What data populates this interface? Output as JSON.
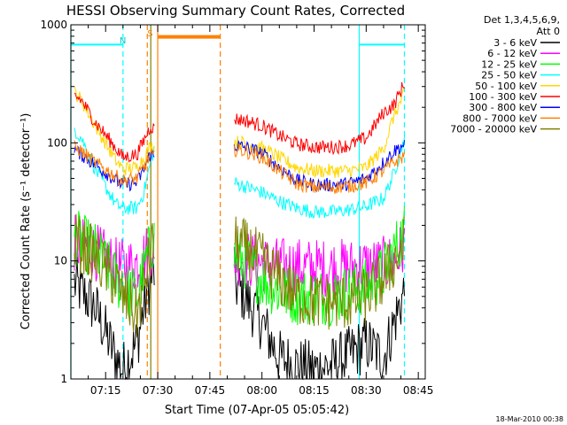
{
  "chart_data": {
    "type": "line",
    "title": "HESSI Observing Summary Count Rates, Corrected",
    "xlabel": "Start Time (07-Apr-05 05:05:42)",
    "ylabel": "Corrected Count Rate (s⁻¹ detector⁻¹)",
    "yscale": "log",
    "ylim": [
      1,
      1000
    ],
    "xlim": [
      "07:05",
      "08:47"
    ],
    "x_ticks": [
      "07:15",
      "07:30",
      "07:45",
      "08:00",
      "08:15",
      "08:30",
      "08:45"
    ],
    "y_ticks": [
      "1",
      "10",
      "100",
      "1000"
    ],
    "legend_position": "top-right",
    "legend_header": [
      "Det 1,3,4,5,6,9,",
      "Att 0"
    ],
    "footer": "18-Mar-2010 00:38",
    "series": [
      {
        "name": "3 - 6 keV",
        "color": "#000000",
        "x": [
          "07:06",
          "07:12",
          "07:18",
          "07:20",
          "07:24",
          "07:26",
          "07:28",
          "07:29",
          "07:52",
          "07:55",
          "08:00",
          "08:05",
          "08:10",
          "08:15",
          "08:20",
          "08:25",
          "08:30",
          "08:35",
          "08:38",
          "08:41"
        ],
        "y": [
          6.5,
          4,
          1.5,
          1.2,
          2,
          4,
          7,
          8,
          6.5,
          5,
          3,
          1.5,
          1.3,
          1.2,
          1.3,
          1.6,
          2,
          1.5,
          3,
          5.5
        ]
      },
      {
        "name": "6 - 12 keV",
        "color": "#ff00ff",
        "x": [
          "07:06",
          "07:12",
          "07:18",
          "07:20",
          "07:24",
          "07:26",
          "07:28",
          "07:29",
          "07:52",
          "07:55",
          "08:00",
          "08:05",
          "08:10",
          "08:15",
          "08:20",
          "08:25",
          "08:30",
          "08:35",
          "08:38",
          "08:41"
        ],
        "y": [
          14,
          12,
          9,
          8.8,
          9.5,
          11,
          13,
          12,
          11,
          10.5,
          9.5,
          9,
          9,
          8.8,
          8.8,
          8.9,
          9,
          9.2,
          10,
          13
        ]
      },
      {
        "name": "12 - 25 keV",
        "color": "#00ff00",
        "x": [
          "07:06",
          "07:12",
          "07:18",
          "07:20",
          "07:24",
          "07:26",
          "07:28",
          "07:29",
          "07:52",
          "07:55",
          "08:00",
          "08:05",
          "08:10",
          "08:15",
          "08:20",
          "08:25",
          "08:30",
          "08:35",
          "08:38",
          "08:41"
        ],
        "y": [
          16,
          12,
          7,
          6,
          5,
          8,
          14,
          15,
          11,
          10,
          7,
          5.5,
          5,
          5,
          5,
          5.5,
          6,
          8,
          12,
          18
        ]
      },
      {
        "name": "25 - 50 keV",
        "color": "#00ffff",
        "x": [
          "07:06",
          "07:08",
          "07:12",
          "07:18",
          "07:20",
          "07:24",
          "07:26",
          "07:28",
          "07:29",
          "07:52",
          "07:55",
          "08:00",
          "08:05",
          "08:10",
          "08:15",
          "08:20",
          "08:25",
          "08:30",
          "08:35",
          "08:38",
          "08:41"
        ],
        "y": [
          130,
          110,
          60,
          30,
          28,
          28,
          38,
          70,
          90,
          46,
          43,
          38,
          32,
          28,
          26,
          26,
          27,
          29,
          34,
          55,
          110
        ]
      },
      {
        "name": "50 - 100 keV",
        "color": "#ffd700",
        "x": [
          "07:06",
          "07:08",
          "07:12",
          "07:18",
          "07:20",
          "07:24",
          "07:26",
          "07:28",
          "07:29",
          "07:52",
          "07:55",
          "08:00",
          "08:05",
          "08:10",
          "08:15",
          "08:20",
          "08:25",
          "08:30",
          "08:35",
          "08:38",
          "08:41"
        ],
        "y": [
          270,
          230,
          140,
          70,
          60,
          62,
          75,
          95,
          90,
          102,
          100,
          90,
          75,
          62,
          58,
          58,
          58,
          62,
          90,
          170,
          260
        ]
      },
      {
        "name": "100 - 300 keV",
        "color": "#ff0000",
        "x": [
          "07:06",
          "07:08",
          "07:12",
          "07:18",
          "07:20",
          "07:24",
          "07:26",
          "07:28",
          "07:29",
          "07:52",
          "07:55",
          "08:00",
          "08:05",
          "08:10",
          "08:15",
          "08:20",
          "08:25",
          "08:30",
          "08:35",
          "08:38",
          "08:41"
        ],
        "y": [
          250,
          230,
          150,
          90,
          75,
          80,
          105,
          140,
          130,
          160,
          155,
          140,
          115,
          98,
          92,
          92,
          95,
          110,
          180,
          210,
          320
        ]
      },
      {
        "name": "300 - 800 keV",
        "color": "#0000ff",
        "x": [
          "07:06",
          "07:08",
          "07:12",
          "07:18",
          "07:20",
          "07:24",
          "07:26",
          "07:28",
          "07:29",
          "07:52",
          "07:55",
          "08:00",
          "08:05",
          "08:10",
          "08:15",
          "08:20",
          "08:25",
          "08:30",
          "08:35",
          "08:38",
          "08:41"
        ],
        "y": [
          88,
          80,
          65,
          48,
          44,
          46,
          60,
          82,
          75,
          95,
          92,
          82,
          62,
          48,
          44,
          44,
          45,
          50,
          68,
          85,
          98
        ]
      },
      {
        "name": "800 - 7000 keV",
        "color": "#ff8000",
        "x": [
          "07:06",
          "07:08",
          "07:12",
          "07:18",
          "07:20",
          "07:24",
          "07:26",
          "07:28",
          "07:29",
          "07:52",
          "07:55",
          "08:00",
          "08:05",
          "08:10",
          "08:15",
          "08:20",
          "08:25",
          "08:30",
          "08:35",
          "08:38",
          "08:41"
        ],
        "y": [
          92,
          85,
          68,
          52,
          48,
          50,
          62,
          80,
          75,
          88,
          85,
          76,
          58,
          45,
          42,
          42,
          43,
          46,
          58,
          68,
          78
        ]
      },
      {
        "name": "7000 - 20000 keV",
        "color": "#808000",
        "x": [
          "07:06",
          "07:12",
          "07:18",
          "07:20",
          "07:24",
          "07:26",
          "07:28",
          "07:29",
          "07:52",
          "07:55",
          "08:00",
          "08:05",
          "08:10",
          "08:15",
          "08:20",
          "08:25",
          "08:30",
          "08:35",
          "08:38",
          "08:41"
        ],
        "y": [
          15,
          11,
          6.5,
          5,
          3.5,
          6,
          12,
          14,
          14,
          13,
          10,
          7,
          5,
          4.5,
          4.5,
          4.5,
          5,
          7,
          10,
          14
        ]
      }
    ],
    "annotations": [
      {
        "label": "N",
        "x": "07:20",
        "color": "#00c8c8"
      },
      {
        "label": "S",
        "x": "07:28",
        "color": "#ff8000"
      }
    ],
    "bands": [
      {
        "kind": "cyan-bar",
        "color": "#00ffff",
        "from": "07:05",
        "to": "07:20",
        "value": 680
      },
      {
        "kind": "cyan-bar",
        "color": "#00ffff",
        "from": "08:28",
        "to": "08:41",
        "value": 680
      },
      {
        "kind": "orange-bar",
        "color": "#ff8000",
        "from": "07:30",
        "to": "07:48",
        "value": 790
      }
    ],
    "vlines": [
      {
        "x": "07:05",
        "color": "#00ffff",
        "dash": false
      },
      {
        "x": "07:20",
        "color": "#00ffff",
        "dash": true
      },
      {
        "x": "07:27",
        "color": "#ff8000",
        "dash": true
      },
      {
        "x": "07:28",
        "color": "#808000",
        "dash": false
      },
      {
        "x": "07:30",
        "color": "#ff8000",
        "dash": false
      },
      {
        "x": "07:48",
        "color": "#ff8000",
        "dash": true
      },
      {
        "x": "08:28",
        "color": "#00ffff",
        "dash": false
      },
      {
        "x": "08:41",
        "color": "#00ffff",
        "dash": true
      }
    ]
  }
}
